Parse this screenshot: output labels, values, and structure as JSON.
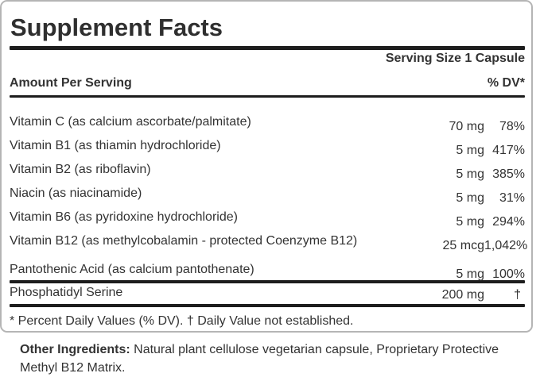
{
  "panel": {
    "title": "Supplement Facts",
    "serving_size": "Serving Size 1 Capsule",
    "column_headers": {
      "amount": "Amount Per Serving",
      "dv": "% DV*"
    },
    "nutrients": [
      {
        "name": "Vitamin C (as calcium ascorbate/palmitate)",
        "amount": "70 mg",
        "dv": "78%"
      },
      {
        "name": "Vitamin B1 (as thiamin hydrochloride)",
        "amount": "5 mg",
        "dv": "417%"
      },
      {
        "name": "Vitamin B2 (as riboflavin)",
        "amount": "5 mg",
        "dv": "385%"
      },
      {
        "name": "Niacin (as niacinamide)",
        "amount": "5 mg",
        "dv": "31%"
      },
      {
        "name": "Vitamin B6 (as pyridoxine hydrochloride)",
        "amount": "5 mg",
        "dv": "294%"
      },
      {
        "name": "Vitamin B12 (as methylcobalamin - protected Coenzyme B12)",
        "amount": "25 mcg",
        "dv": "1,042%"
      },
      {
        "name": "Pantothenic Acid (as calcium pantothenate)",
        "amount": "5 mg",
        "dv": "100%"
      }
    ],
    "extra_nutrient": {
      "name": "Phosphatidyl Serine",
      "amount": "200 mg",
      "dv": "†"
    },
    "footnote": "* Percent Daily Values (% DV). † Daily Value not established.",
    "other_ingredients": {
      "label": "Other Ingredients:",
      "text": " Natural plant cellulose vegetarian capsule, Proprietary Protective Methyl B12 Matrix."
    },
    "colors": {
      "text": "#333333",
      "rule_bars": "#1d1d1d",
      "panel_border": "#b5b5b5",
      "background": "#ffffff"
    }
  }
}
